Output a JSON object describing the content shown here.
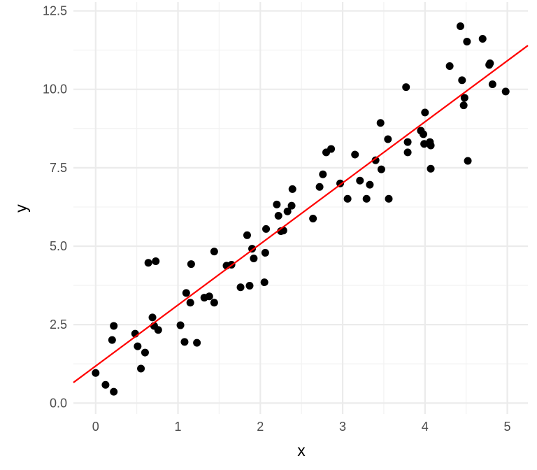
{
  "chart_data": {
    "type": "scatter",
    "title": "",
    "xlabel": "x",
    "ylabel": "y",
    "xlim": [
      -0.27,
      5.25
    ],
    "ylim": [
      -0.35,
      12.78
    ],
    "x_ticks": [
      0,
      1,
      2,
      3,
      4,
      5
    ],
    "x_tick_labels": [
      "0",
      "1",
      "2",
      "3",
      "4",
      "5"
    ],
    "y_ticks": [
      0,
      2.5,
      5,
      7.5,
      10,
      12.5
    ],
    "y_tick_labels": [
      "0.0",
      "2.5",
      "5.0",
      "7.5",
      "10.0",
      "12.5"
    ],
    "grid": true,
    "legend": "none",
    "point_color": "#000000",
    "line_color": "#ff0000",
    "fit_line": {
      "intercept": 1.18,
      "slope": 1.946
    },
    "points": [
      [
        0.0,
        0.96
      ],
      [
        0.12,
        0.58
      ],
      [
        0.22,
        0.36
      ],
      [
        0.2,
        2.01
      ],
      [
        0.22,
        2.46
      ],
      [
        0.48,
        2.21
      ],
      [
        0.51,
        1.81
      ],
      [
        0.55,
        1.1
      ],
      [
        0.6,
        1.61
      ],
      [
        0.64,
        4.47
      ],
      [
        0.73,
        4.52
      ],
      [
        0.69,
        2.73
      ],
      [
        0.71,
        2.46
      ],
      [
        0.76,
        2.33
      ],
      [
        1.03,
        2.48
      ],
      [
        1.08,
        1.95
      ],
      [
        1.1,
        3.51
      ],
      [
        1.15,
        3.2
      ],
      [
        1.16,
        4.43
      ],
      [
        1.23,
        1.92
      ],
      [
        1.32,
        3.36
      ],
      [
        1.38,
        3.4
      ],
      [
        1.44,
        3.2
      ],
      [
        1.44,
        4.83
      ],
      [
        1.59,
        4.38
      ],
      [
        1.65,
        4.41
      ],
      [
        1.76,
        3.69
      ],
      [
        1.84,
        5.35
      ],
      [
        1.87,
        3.74
      ],
      [
        1.9,
        4.92
      ],
      [
        1.92,
        4.61
      ],
      [
        2.05,
        3.85
      ],
      [
        2.06,
        4.79
      ],
      [
        2.07,
        5.55
      ],
      [
        2.2,
        6.33
      ],
      [
        2.22,
        5.97
      ],
      [
        2.25,
        5.48
      ],
      [
        2.28,
        5.5
      ],
      [
        2.33,
        6.11
      ],
      [
        2.38,
        6.29
      ],
      [
        2.39,
        6.82
      ],
      [
        2.64,
        5.88
      ],
      [
        2.72,
        6.89
      ],
      [
        2.76,
        7.29
      ],
      [
        2.8,
        7.99
      ],
      [
        2.86,
        8.1
      ],
      [
        2.97,
        7.0
      ],
      [
        3.06,
        6.51
      ],
      [
        3.15,
        7.92
      ],
      [
        3.21,
        7.09
      ],
      [
        3.29,
        6.51
      ],
      [
        3.33,
        6.96
      ],
      [
        3.4,
        7.74
      ],
      [
        3.46,
        8.93
      ],
      [
        3.47,
        7.45
      ],
      [
        3.55,
        8.41
      ],
      [
        3.56,
        6.51
      ],
      [
        3.77,
        10.07
      ],
      [
        3.79,
        7.99
      ],
      [
        3.79,
        8.32
      ],
      [
        3.95,
        8.68
      ],
      [
        3.98,
        8.57
      ],
      [
        4.0,
        9.26
      ],
      [
        3.99,
        8.26
      ],
      [
        4.06,
        8.32
      ],
      [
        4.07,
        8.21
      ],
      [
        4.07,
        7.47
      ],
      [
        4.3,
        10.74
      ],
      [
        4.43,
        12.01
      ],
      [
        4.45,
        10.29
      ],
      [
        4.48,
        9.73
      ],
      [
        4.47,
        9.49
      ],
      [
        4.51,
        11.52
      ],
      [
        4.52,
        7.72
      ],
      [
        4.7,
        11.61
      ],
      [
        4.78,
        10.78
      ],
      [
        4.79,
        10.83
      ],
      [
        4.82,
        10.16
      ],
      [
        4.98,
        9.93
      ]
    ]
  }
}
